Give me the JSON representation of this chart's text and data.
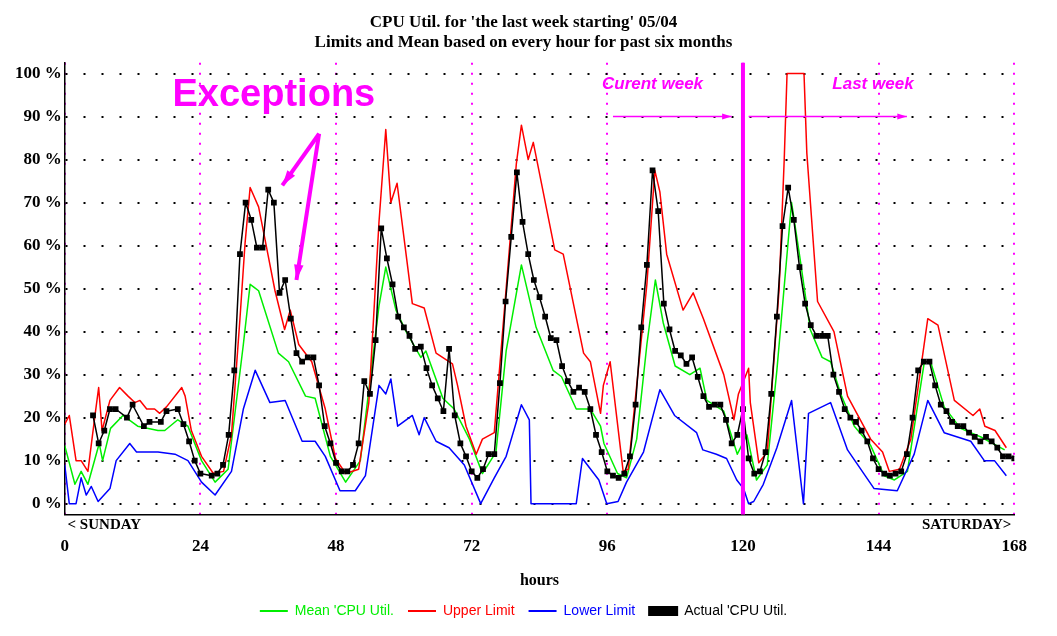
{
  "chart_data": {
    "type": "line",
    "title": [
      "CPU Util. for 'the last week starting' 05/04",
      "Limits and Mean based on every hour for past six months"
    ],
    "xlabel": "hours",
    "xlim": [
      0,
      168
    ],
    "xticks": [
      0,
      24,
      48,
      72,
      96,
      120,
      144,
      168
    ],
    "ylim": [
      -2.5,
      102.5
    ],
    "yticks": [
      {
        "value": 0,
        "label": "0 %"
      },
      {
        "value": 10,
        "label": "10 %"
      },
      {
        "value": 20,
        "label": "20 %"
      },
      {
        "value": 30,
        "label": "30 %"
      },
      {
        "value": 40,
        "label": "40 %"
      },
      {
        "value": 50,
        "label": "50 %"
      },
      {
        "value": 60,
        "label": "60 %"
      },
      {
        "value": 70,
        "label": "70 %"
      },
      {
        "value": 80,
        "label": "80 %"
      },
      {
        "value": 90,
        "label": "90 %"
      },
      {
        "value": 100,
        "label": "100 %"
      }
    ],
    "grid": true,
    "legend": "bottom",
    "ref_lines": [
      {
        "axis": "x",
        "value": 120,
        "color": "#ff00ff"
      }
    ],
    "annotations": [
      "Exceptions",
      "Curent week",
      "Last week",
      "< SUNDAY",
      "SATURDAY>"
    ],
    "series": [
      {
        "name": "Mean 'CPU Util.",
        "color": "#00ee00",
        "marker": "none",
        "x": [
          0,
          1.8,
          2.9,
          4.1,
          6.1,
          6.7,
          8.1,
          10.3,
          12.9,
          16.5,
          17.7,
          20,
          21.8,
          24.2,
          26.6,
          28.9,
          31.6,
          32.8,
          34.3,
          37.8,
          39.6,
          42.6,
          44.3,
          47,
          49.7,
          52.3,
          55.6,
          56.8,
          58.6,
          60.4,
          63,
          63.9,
          66.9,
          68.9,
          71.6,
          73.9,
          76.3,
          78.1,
          80.8,
          83.4,
          86.4,
          87.9,
          90.5,
          93,
          94.8,
          95.4,
          97.8,
          99.4,
          101.2,
          103,
          104.5,
          105.9,
          108,
          110.6,
          112.4,
          113.6,
          116.6,
          119,
          120.7,
          122.4,
          124.3,
          126,
          128.6,
          130.1,
          131.9,
          134,
          135.5,
          137.3,
          139.7,
          142.6,
          145,
          146.8,
          149.1,
          152.1,
          153.2,
          155.6,
          158.5,
          162.1,
          166.3
        ],
        "values": [
          13.5,
          4.5,
          7.5,
          4.5,
          14,
          10,
          17.5,
          20.5,
          18,
          17,
          17,
          19.5,
          18,
          10,
          5,
          8,
          37,
          51,
          49.5,
          35,
          33,
          25,
          24.5,
          11,
          5,
          10,
          46,
          55,
          45,
          40,
          34,
          35.5,
          24.5,
          22,
          15,
          7,
          12,
          35.5,
          55.5,
          41,
          31,
          29.5,
          22,
          22,
          18,
          14,
          7,
          6,
          15,
          37,
          52,
          42,
          32,
          30,
          31.5,
          24,
          21.5,
          11.5,
          16,
          5.5,
          9,
          31,
          70,
          57,
          40.5,
          34,
          33,
          25.5,
          18,
          13.5,
          6.5,
          5.5,
          7.5,
          33,
          33,
          22.5,
          17.5,
          15.5,
          12.5
        ]
      },
      {
        "name": "Upper Limit",
        "color": "#ff0000",
        "marker": "none",
        "x": [
          0,
          0.8,
          2,
          2.9,
          4.1,
          5.3,
          6,
          6.6,
          8,
          9.7,
          11.2,
          12.4,
          13.3,
          14.5,
          15.9,
          16.8,
          18,
          20.7,
          21.3,
          22.4,
          24.2,
          26.3,
          28.1,
          29.5,
          31,
          31.9,
          32.8,
          34.3,
          35.5,
          37.2,
          38.9,
          39.9,
          41.4,
          43.7,
          46.1,
          47.9,
          49.7,
          52,
          53.8,
          55.6,
          56.8,
          57.7,
          58.8,
          61.5,
          63.6,
          65.7,
          68.6,
          69.5,
          71,
          72.8,
          73.9,
          76,
          78.1,
          79.9,
          80.8,
          82,
          82.9,
          86.7,
          88.2,
          91.8,
          93,
          94.8,
          95.3,
          96.5,
          98.8,
          99.7,
          103,
          104.4,
          105.3,
          106.5,
          109.4,
          111.2,
          113,
          116.6,
          118.4,
          119.2,
          121,
          121.3,
          122.8,
          124.3,
          126.4,
          127.3,
          127.8,
          130.8,
          131.3,
          133.2,
          136.1,
          138.5,
          142.6,
          144.7,
          145.9,
          147.7,
          149.7,
          152.7,
          154.5,
          157.4,
          160.7,
          161.9,
          162.8,
          164.6,
          166.6
        ],
        "values": [
          18.5,
          20.5,
          10,
          10,
          7.5,
          20,
          27,
          17,
          24,
          27,
          25,
          23.5,
          24,
          22,
          22,
          21,
          22.5,
          27,
          25,
          17,
          11,
          7,
          7.5,
          16,
          43,
          60.5,
          73.5,
          69,
          61,
          49.5,
          40.5,
          45,
          37,
          33,
          22,
          10.5,
          7,
          8,
          23.5,
          65.5,
          87,
          70,
          74.5,
          46.5,
          45.5,
          35,
          32.5,
          27.5,
          18,
          11.5,
          15,
          16.5,
          50,
          79,
          88,
          80,
          84,
          59,
          58,
          35,
          33,
          21,
          27.5,
          33,
          7.5,
          8,
          51,
          77.5,
          72.5,
          58,
          45,
          49,
          43,
          30,
          19.5,
          25.5,
          31.5,
          23.5,
          9.5,
          12,
          50,
          80,
          100,
          100,
          81.5,
          47,
          40,
          25,
          15,
          12,
          7.5,
          8,
          15,
          43,
          41.5,
          24,
          20.5,
          22,
          18,
          17,
          13
        ]
      },
      {
        "name": "Lower Limit",
        "color": "#0000ff",
        "marker": "none",
        "x": [
          0,
          0.8,
          2,
          2.9,
          3.8,
          4.7,
          5.9,
          8,
          9.1,
          11.5,
          12.7,
          14.1,
          16.5,
          19.5,
          21.8,
          24.2,
          26.6,
          29.5,
          31.6,
          33.7,
          36.3,
          39,
          42,
          44.3,
          46.1,
          48.7,
          51.4,
          53.2,
          55.6,
          56.8,
          57.7,
          58.9,
          61.5,
          62.7,
          63.6,
          65.7,
          68,
          70.7,
          73.6,
          76,
          78.1,
          80.8,
          82.2,
          82.5,
          90.5,
          91.6,
          94.5,
          95.9,
          97.9,
          99.4,
          102.4,
          105.3,
          107.9,
          111.8,
          112.9,
          115.3,
          117.1,
          118.9,
          120.1,
          121,
          121.9,
          123.6,
          126,
          128.6,
          130.7,
          131.6,
          135.5,
          138.5,
          143.2,
          147.3,
          150.3,
          152.7,
          155.6,
          160.3,
          162.7,
          164.5,
          166.6
        ],
        "values": [
          9,
          0,
          0,
          6,
          2,
          4,
          0.5,
          3.5,
          10,
          14,
          12,
          12,
          12,
          11.5,
          10,
          5,
          2,
          7.5,
          22,
          31,
          23.5,
          24,
          14.5,
          14.5,
          11,
          3,
          3,
          6.5,
          27.5,
          25.5,
          29,
          18,
          20.5,
          16,
          20,
          14.5,
          13,
          9,
          0,
          6,
          11,
          23,
          19.5,
          0,
          0,
          10.5,
          5.5,
          0,
          0.5,
          5,
          12,
          26.5,
          20.5,
          16.5,
          12.5,
          11.5,
          10.5,
          5.5,
          3.5,
          0,
          0.5,
          4.5,
          13,
          24,
          0,
          21,
          23.5,
          12.5,
          3.5,
          3,
          11.5,
          24,
          16.5,
          14.5,
          10,
          10,
          6.5
        ]
      },
      {
        "name": "Actual 'CPU Util.",
        "color": "#000000",
        "marker": "square",
        "x": [
          5,
          6,
          7,
          8,
          9,
          11,
          12,
          14,
          15,
          17,
          18,
          20,
          21,
          22,
          23,
          24,
          26,
          27,
          28,
          29,
          30,
          31,
          32,
          33,
          34,
          35,
          36,
          37,
          38,
          39,
          40,
          41,
          42,
          43,
          44,
          45,
          46,
          47,
          48,
          49,
          50,
          51,
          52,
          53,
          54,
          55,
          56,
          57,
          58,
          59,
          60,
          61,
          62,
          63,
          64,
          65,
          66,
          67,
          68,
          69,
          70,
          71,
          72,
          73,
          74,
          75,
          76,
          77,
          78,
          79,
          80,
          81,
          82,
          83,
          84,
          85,
          86,
          87,
          88,
          89,
          90,
          91,
          92,
          93,
          94,
          95,
          96,
          97,
          98,
          99,
          100,
          101,
          102,
          103,
          104,
          105,
          106,
          107,
          108,
          109,
          110,
          111,
          112,
          113,
          114,
          115,
          116,
          117,
          118,
          119,
          120,
          121,
          122,
          123,
          124,
          125,
          126,
          127,
          128,
          129,
          130,
          131,
          132,
          133,
          134,
          135,
          136,
          137,
          138,
          139,
          140,
          141,
          142,
          143,
          144,
          145,
          146,
          147,
          148,
          149,
          150,
          151,
          152,
          153,
          154,
          155,
          156,
          157,
          158,
          159,
          160,
          161,
          162,
          163,
          164,
          165,
          166,
          167,
          168
        ],
        "values": [
          20.5,
          14,
          17,
          22,
          22,
          20,
          23,
          18,
          19,
          19,
          21.5,
          22,
          18.5,
          14.5,
          10,
          7,
          6.5,
          7,
          9,
          16,
          31,
          58,
          70,
          66,
          59.5,
          59.5,
          73,
          70,
          49,
          52,
          43,
          35,
          33,
          34,
          34,
          27.5,
          18,
          14,
          9.5,
          7.5,
          7.5,
          9,
          14,
          28.5,
          25.5,
          38,
          64,
          57,
          51,
          43.5,
          41,
          39,
          36,
          36.5,
          31.5,
          27.5,
          24.5,
          21.5,
          36,
          20.5,
          14,
          11,
          7.5,
          6,
          8,
          11.5,
          11.5,
          28,
          47,
          62,
          77,
          65.5,
          58,
          52,
          48,
          43.5,
          38.5,
          38,
          32,
          28.5,
          26,
          27,
          26,
          22,
          16,
          12,
          7.5,
          6.5,
          6,
          7,
          11,
          23,
          41,
          55.5,
          77.5,
          68,
          46.5,
          40.5,
          35.5,
          34.5,
          32.5,
          34,
          29.5,
          25,
          22.5,
          23,
          23,
          19.5,
          14,
          16,
          22,
          10.5,
          7,
          7.5,
          12,
          25.5,
          43.5,
          64.5,
          73.5,
          66,
          55,
          46.5,
          41.5,
          39,
          39,
          39,
          30,
          26,
          22,
          20,
          19,
          17,
          14.5,
          10.5,
          8,
          7,
          6.5,
          7,
          7.5,
          11.5,
          20,
          31,
          33,
          33,
          27.5,
          23,
          21.5,
          19,
          18,
          18,
          16.5,
          15.5,
          14.5,
          15.5,
          14.5,
          13,
          11,
          11,
          10.5
        ]
      }
    ]
  }
}
